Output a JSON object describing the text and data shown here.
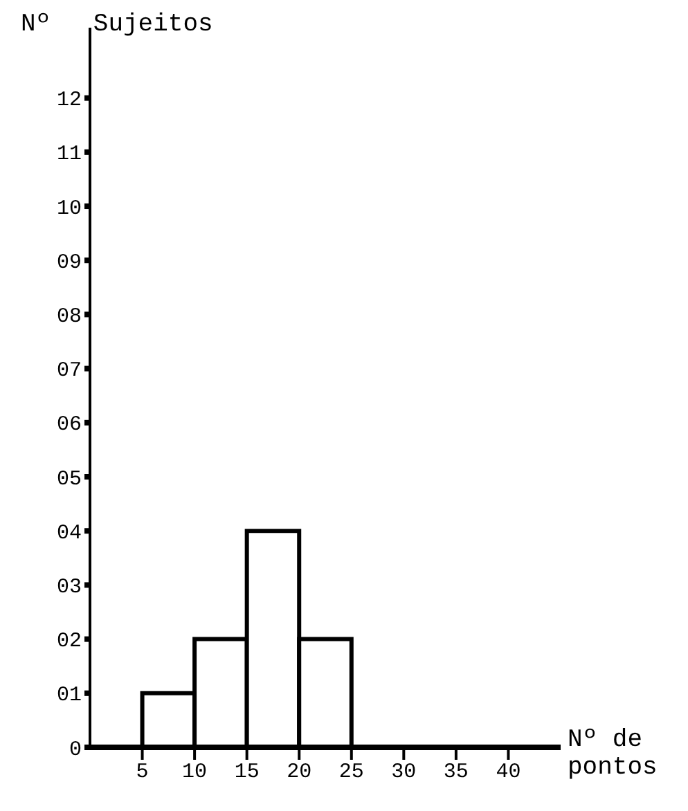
{
  "chart_data": {
    "type": "histogram",
    "xlabel": "Nº de pontos",
    "ylabel": "Nº Sujeitos",
    "bins": [
      5,
      10,
      15,
      20,
      25
    ],
    "values": [
      1,
      2,
      4,
      2
    ],
    "color": "#000000",
    "xlim": [
      0,
      45
    ],
    "xticks": [
      5,
      10,
      15,
      20,
      25,
      30,
      35,
      40
    ],
    "ylim": [
      0,
      13.3
    ],
    "yticks": [
      0,
      {
        "value": 1,
        "label": "01"
      },
      {
        "value": 2,
        "label": "02"
      },
      {
        "value": 3,
        "label": "03"
      },
      {
        "value": 4,
        "label": "04"
      },
      {
        "value": 5,
        "label": "05"
      },
      {
        "value": 6,
        "label": "06"
      },
      {
        "value": 7,
        "label": "07"
      },
      {
        "value": 8,
        "label": "08"
      },
      {
        "value": 9,
        "label": "09"
      },
      {
        "value": 10,
        "label": "10"
      },
      {
        "value": 11,
        "label": "11"
      },
      {
        "value": 12,
        "label": "12"
      }
    ],
    "grid": false
  }
}
